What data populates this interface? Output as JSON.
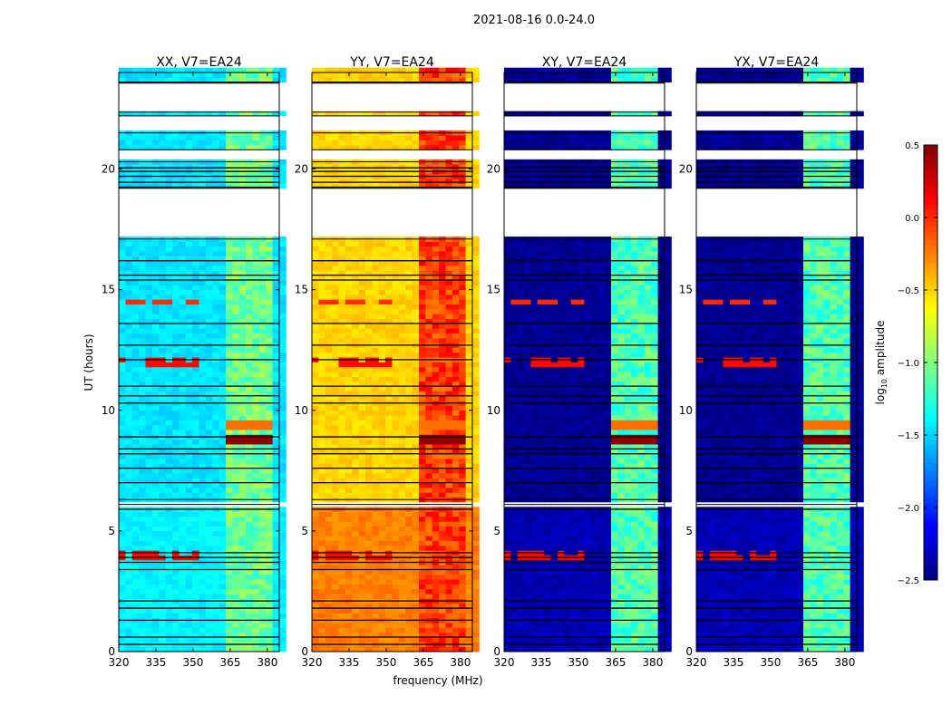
{
  "chart_data": {
    "type": "heatmap",
    "title": "2021-08-16 0.0-24.0",
    "xlabel": "frequency (MHz)",
    "ylabel": "UT (hours)",
    "xlim": [
      320,
      384.8
    ],
    "ylim": [
      0,
      24
    ],
    "xticks": [
      "320",
      "335",
      "350",
      "365",
      "380"
    ],
    "xtick_values": [
      320,
      335,
      350,
      365,
      380
    ],
    "yticks": [
      "0",
      "5",
      "10",
      "15",
      "20"
    ],
    "ytick_values": [
      0,
      5,
      10,
      15,
      20
    ],
    "colorbar": {
      "label": "log10 amplitude",
      "label_main": "log",
      "label_sub": "10",
      "label_rest": " amplitude",
      "range": [
        -2.5,
        0.5
      ],
      "ticks": [
        "0.5",
        "0.0",
        "−0.5",
        "−1.0",
        "−1.5",
        "−2.0",
        "−2.5"
      ],
      "tick_values": [
        0.5,
        0.0,
        -0.5,
        -1.0,
        -1.5,
        -2.0,
        -2.5
      ],
      "colormap": "jet"
    },
    "band_mhz": [
      362,
      382
    ],
    "band_stripes_mhz": [
      [
        362.5,
        366
      ],
      [
        367,
        371
      ],
      [
        372,
        376
      ],
      [
        377,
        381
      ]
    ],
    "gaps_hours": [
      [
        22.36,
        23.56
      ],
      [
        21.5,
        22.2
      ],
      [
        20.3,
        20.8
      ],
      [
        17.1,
        19.2
      ],
      [
        6.1,
        6.3
      ]
    ],
    "flag_lines_hours": [
      0.3,
      0.6,
      1.3,
      1.8,
      2.1,
      3.4,
      3.7,
      3.9,
      4.1,
      5.9,
      7.0,
      7.6,
      8.2,
      8.4,
      8.9,
      10.3,
      10.6,
      11.0,
      12.1,
      12.7,
      13.6,
      15.4,
      15.6,
      16.2,
      19.25,
      19.45,
      19.7,
      19.9,
      20.05,
      23.6
    ],
    "rfi_events": [
      {
        "hour": 8.8,
        "level": 0.45,
        "where": "band"
      },
      {
        "hour": 9.4,
        "level": -0.2,
        "where": "band"
      },
      {
        "hour": 12.0,
        "level": 0.1,
        "where": "low"
      },
      {
        "hour": 14.5,
        "level": 0.0,
        "where": "low"
      },
      {
        "hour": 4.0,
        "level": 0.1,
        "where": "low"
      }
    ],
    "panels": [
      {
        "title": "XX, V7=EA24",
        "base": -1.45,
        "low_base": -1.4,
        "band_level": -1.05,
        "band_gap_level": -1.2
      },
      {
        "title": "YY, V7=EA24",
        "base": -0.5,
        "low_base": -0.25,
        "band_level": -0.05,
        "band_gap_level": -0.3
      },
      {
        "title": "XY, V7=EA24",
        "base": -2.45,
        "low_base": -2.35,
        "band_level": -1.15,
        "band_gap_level": -2.0
      },
      {
        "title": "YX, V7=EA24",
        "base": -2.45,
        "low_base": -2.35,
        "band_level": -1.15,
        "band_gap_level": -2.0
      }
    ]
  }
}
